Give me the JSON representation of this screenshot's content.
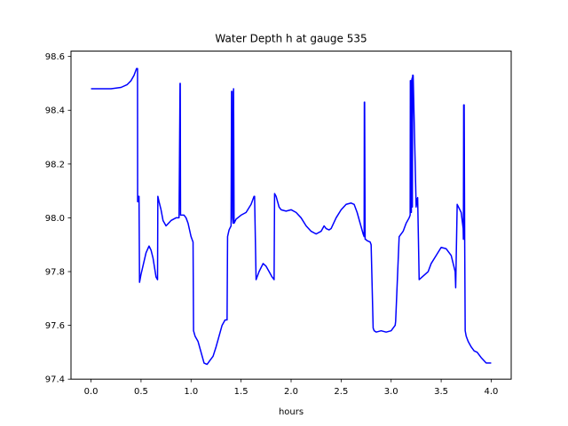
{
  "chart_data": {
    "type": "line",
    "title": "Water Depth h at gauge 535",
    "xlabel": "hours",
    "ylabel": "",
    "xlim": [
      -0.2,
      4.2
    ],
    "ylim": [
      97.4,
      98.62
    ],
    "xticks": [
      0.0,
      0.5,
      1.0,
      1.5,
      2.0,
      2.5,
      3.0,
      3.5,
      4.0
    ],
    "xtick_labels": [
      "0.0",
      "0.5",
      "1.0",
      "1.5",
      "2.0",
      "2.5",
      "3.0",
      "3.5",
      "4.0"
    ],
    "yticks": [
      97.4,
      97.6,
      97.8,
      98.0,
      98.2,
      98.4,
      98.6
    ],
    "ytick_labels": [
      "97.4",
      "97.6",
      "97.8",
      "98.0",
      "98.2",
      "98.4",
      "98.6"
    ],
    "grid": false,
    "legend": "none",
    "series": [
      {
        "color": "#0000ff",
        "x": [
          0.0,
          0.2,
          0.3,
          0.36,
          0.4,
          0.43,
          0.455,
          0.465,
          0.466,
          0.47,
          0.475,
          0.48,
          0.485,
          0.49,
          0.5,
          0.55,
          0.58,
          0.6,
          0.62,
          0.65,
          0.665,
          0.668,
          0.68,
          0.7,
          0.72,
          0.75,
          0.8,
          0.85,
          0.88,
          0.89,
          0.892,
          0.895,
          0.9,
          0.902,
          0.91,
          0.93,
          0.95,
          0.97,
          1.0,
          1.02,
          1.025,
          1.04,
          1.07,
          1.1,
          1.13,
          1.16,
          1.19,
          1.22,
          1.25,
          1.28,
          1.31,
          1.34,
          1.36,
          1.365,
          1.38,
          1.4,
          1.405,
          1.41,
          1.415,
          1.42,
          1.425,
          1.43,
          1.45,
          1.5,
          1.55,
          1.6,
          1.63,
          1.635,
          1.65,
          1.68,
          1.72,
          1.75,
          1.78,
          1.81,
          1.83,
          1.835,
          1.85,
          1.88,
          1.9,
          1.95,
          2.0,
          2.05,
          2.1,
          2.15,
          2.2,
          2.25,
          2.3,
          2.33,
          2.35,
          2.38,
          2.4,
          2.45,
          2.5,
          2.55,
          2.6,
          2.63,
          2.66,
          2.69,
          2.72,
          2.73,
          2.732,
          2.735,
          2.74,
          2.745,
          2.76,
          2.79,
          2.8,
          2.82,
          2.83,
          2.85,
          2.9,
          2.95,
          3.0,
          3.04,
          3.045,
          3.08,
          3.12,
          3.15,
          3.18,
          3.19,
          3.192,
          3.195,
          3.2,
          3.202,
          3.205,
          3.21,
          3.212,
          3.215,
          3.22,
          3.25,
          3.26,
          3.265,
          3.28,
          3.31,
          3.34,
          3.37,
          3.4,
          3.45,
          3.5,
          3.55,
          3.6,
          3.64,
          3.645,
          3.66,
          3.7,
          3.72,
          3.722,
          3.725,
          3.73,
          3.735,
          3.74,
          3.75,
          3.77,
          3.8,
          3.83,
          3.86,
          3.9,
          3.95,
          4.0
        ],
        "y": [
          98.48,
          98.48,
          98.485,
          98.495,
          98.51,
          98.53,
          98.555,
          98.555,
          98.06,
          98.06,
          98.08,
          98.08,
          97.76,
          97.77,
          97.79,
          97.87,
          97.895,
          97.88,
          97.85,
          97.78,
          97.77,
          98.08,
          98.06,
          98.03,
          97.99,
          97.97,
          97.99,
          98.0,
          98.0,
          98.5,
          98.5,
          98.01,
          98.01,
          98.01,
          98.01,
          98.01,
          98.0,
          97.98,
          97.93,
          97.91,
          97.58,
          97.56,
          97.54,
          97.5,
          97.46,
          97.455,
          97.47,
          97.485,
          97.52,
          97.56,
          97.6,
          97.62,
          97.62,
          97.93,
          97.955,
          97.97,
          98.47,
          98.47,
          98.0,
          97.98,
          98.48,
          97.98,
          97.995,
          98.01,
          98.02,
          98.05,
          98.08,
          98.08,
          97.77,
          97.8,
          97.83,
          97.82,
          97.8,
          97.78,
          97.77,
          98.09,
          98.08,
          98.04,
          98.03,
          98.025,
          98.03,
          98.02,
          98.0,
          97.97,
          97.95,
          97.94,
          97.95,
          97.97,
          97.96,
          97.955,
          97.96,
          98.0,
          98.03,
          98.05,
          98.055,
          98.05,
          98.02,
          97.98,
          97.94,
          97.93,
          98.43,
          98.43,
          97.92,
          97.92,
          97.915,
          97.91,
          97.9,
          97.59,
          97.58,
          97.575,
          97.58,
          97.575,
          97.58,
          97.6,
          97.615,
          97.93,
          97.95,
          97.98,
          98.0,
          98.01,
          98.51,
          98.51,
          98.02,
          98.02,
          98.51,
          98.52,
          98.04,
          98.53,
          98.53,
          98.04,
          98.07,
          98.075,
          97.77,
          97.78,
          97.79,
          97.8,
          97.83,
          97.86,
          97.89,
          97.885,
          97.86,
          97.8,
          97.74,
          98.05,
          98.02,
          97.96,
          97.92,
          98.42,
          98.42,
          97.92,
          97.58,
          97.56,
          97.54,
          97.52,
          97.505,
          97.5,
          97.48,
          97.46,
          97.46
        ]
      }
    ]
  }
}
